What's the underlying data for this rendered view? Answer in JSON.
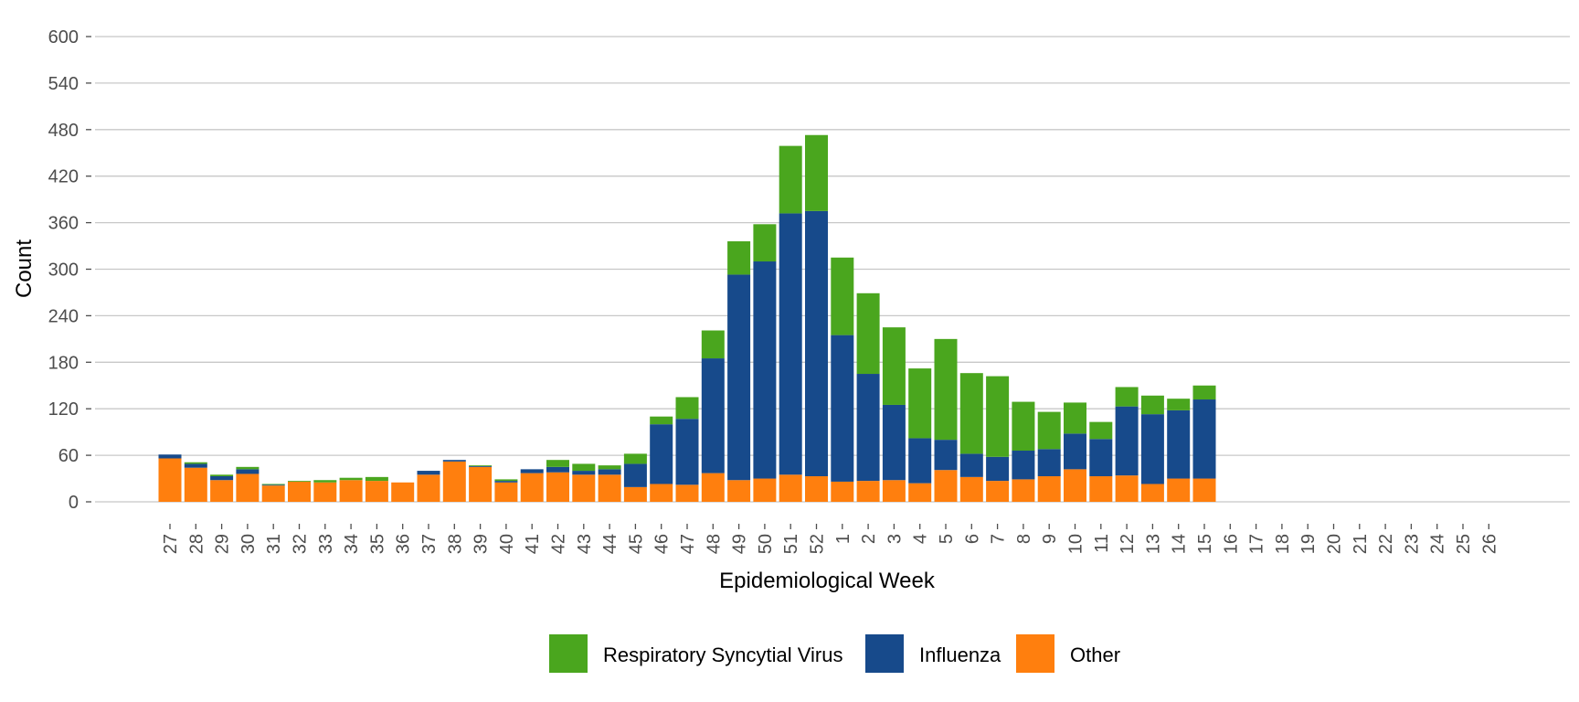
{
  "chart_data": {
    "type": "bar",
    "stacked": true,
    "xlabel": "Epidemiological Week",
    "ylabel": "Count",
    "ylim": [
      0,
      600
    ],
    "yticks": [
      0,
      60,
      120,
      180,
      240,
      300,
      360,
      420,
      480,
      540,
      600
    ],
    "grid": "horizontal",
    "legend_position": "bottom",
    "categories": [
      "27",
      "28",
      "29",
      "30",
      "31",
      "32",
      "33",
      "34",
      "35",
      "36",
      "37",
      "38",
      "39",
      "40",
      "41",
      "42",
      "43",
      "44",
      "45",
      "46",
      "47",
      "48",
      "49",
      "50",
      "51",
      "52",
      "1",
      "2",
      "3",
      "4",
      "5",
      "6",
      "7",
      "8",
      "9",
      "10",
      "11",
      "12",
      "13",
      "14",
      "15",
      "16",
      "17",
      "18",
      "19",
      "20",
      "21",
      "22",
      "23",
      "24",
      "25",
      "26"
    ],
    "series": [
      {
        "name": "Other",
        "color": "#ff7f0e",
        "values": [
          56,
          44,
          28,
          36,
          21,
          26,
          25,
          28,
          27,
          25,
          35,
          52,
          45,
          25,
          37,
          38,
          35,
          35,
          19,
          23,
          22,
          37,
          28,
          30,
          35,
          33,
          26,
          27,
          28,
          24,
          41,
          32,
          27,
          29,
          33,
          42,
          33,
          34,
          23,
          30,
          30,
          0,
          0,
          0,
          0,
          0,
          0,
          0,
          0,
          0,
          0,
          0
        ]
      },
      {
        "name": "Influenza",
        "color": "#174a8b",
        "values": [
          5,
          5,
          5,
          6,
          1,
          0,
          0,
          0,
          0,
          0,
          5,
          2,
          1,
          2,
          5,
          7,
          5,
          7,
          30,
          77,
          85,
          148,
          265,
          280,
          337,
          342,
          189,
          138,
          97,
          58,
          39,
          30,
          31,
          37,
          35,
          46,
          48,
          89,
          90,
          88,
          102,
          0,
          0,
          0,
          0,
          0,
          0,
          0,
          0,
          0,
          0,
          0
        ]
      },
      {
        "name": "Respiratory Syncytial Virus",
        "color": "#4aa61e",
        "values": [
          0,
          2,
          2,
          3,
          1,
          1,
          3,
          3,
          5,
          0,
          0,
          0,
          1,
          2,
          0,
          9,
          9,
          5,
          13,
          10,
          28,
          36,
          43,
          48,
          87,
          98,
          100,
          104,
          100,
          90,
          130,
          104,
          104,
          63,
          48,
          40,
          22,
          25,
          24,
          15,
          18,
          0,
          0,
          0,
          0,
          0,
          0,
          0,
          0,
          0,
          0,
          0
        ]
      }
    ],
    "legend_order": [
      "Respiratory Syncytial Virus",
      "Influenza",
      "Other"
    ]
  }
}
